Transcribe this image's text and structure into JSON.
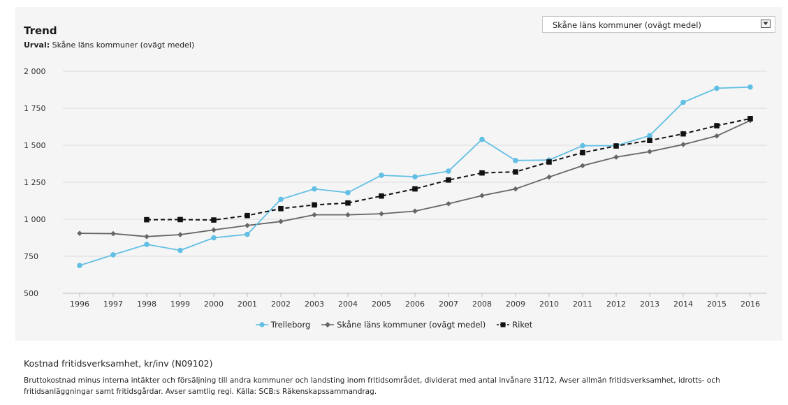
{
  "header": {
    "title": "Trend",
    "subtitle_label": "Urval:",
    "subtitle_value": "Skåne läns kommuner (ovägt medel)"
  },
  "selector": {
    "value": "Skåne läns kommuner (ovägt medel)"
  },
  "chart_data": {
    "type": "line",
    "title": "Trend",
    "x": [
      "1996",
      "1997",
      "1998",
      "1999",
      "2000",
      "2001",
      "2002",
      "2003",
      "2004",
      "2005",
      "2006",
      "2007",
      "2008",
      "2009",
      "2010",
      "2011",
      "2012",
      "2013",
      "2014",
      "2015",
      "2016"
    ],
    "yticks": [
      "2 000",
      "1 750",
      "1 500",
      "1 250",
      "1 000",
      "750",
      "500"
    ],
    "ylim": [
      500,
      2000
    ],
    "grid": true,
    "legend_position": "bottom-center",
    "series": [
      {
        "name": "Trelleborg",
        "color": "#62bfe4",
        "marker": "circle",
        "dash": false,
        "values": [
          688,
          760,
          830,
          790,
          875,
          898,
          1135,
          1205,
          1180,
          1297,
          1287,
          1325,
          1540,
          1397,
          1400,
          1497,
          1497,
          1565,
          1790,
          1885,
          1893
        ]
      },
      {
        "name": "Skåne läns kommuner (ovägt medel)",
        "color": "#666666",
        "marker": "diamond",
        "dash": false,
        "values": [
          905,
          903,
          883,
          896,
          928,
          958,
          985,
          1030,
          1030,
          1037,
          1055,
          1105,
          1160,
          1205,
          1285,
          1362,
          1420,
          1457,
          1505,
          1563,
          1667
        ]
      },
      {
        "name": "Riket",
        "color": "#111111",
        "marker": "square",
        "dash": true,
        "values": [
          null,
          null,
          997,
          998,
          995,
          1025,
          1072,
          1097,
          1110,
          1157,
          1205,
          1265,
          1313,
          1320,
          1387,
          1450,
          1495,
          1532,
          1577,
          1632,
          1680
        ]
      }
    ]
  },
  "description": {
    "title": "Kostnad fritidsverksamhet, kr/inv (N09102)",
    "text": "Bruttokostnad minus interna intäkter och försäljning till andra kommuner och landsting inom fritidsområdet, dividerat med antal invånare 31/12, Avser allmän fritidsverksamhet, idrotts- och fritidsanläggningar samt fritidsgårdar. Avser samtlig regi. Källa: SCB:s Räkenskapssammandrag."
  }
}
